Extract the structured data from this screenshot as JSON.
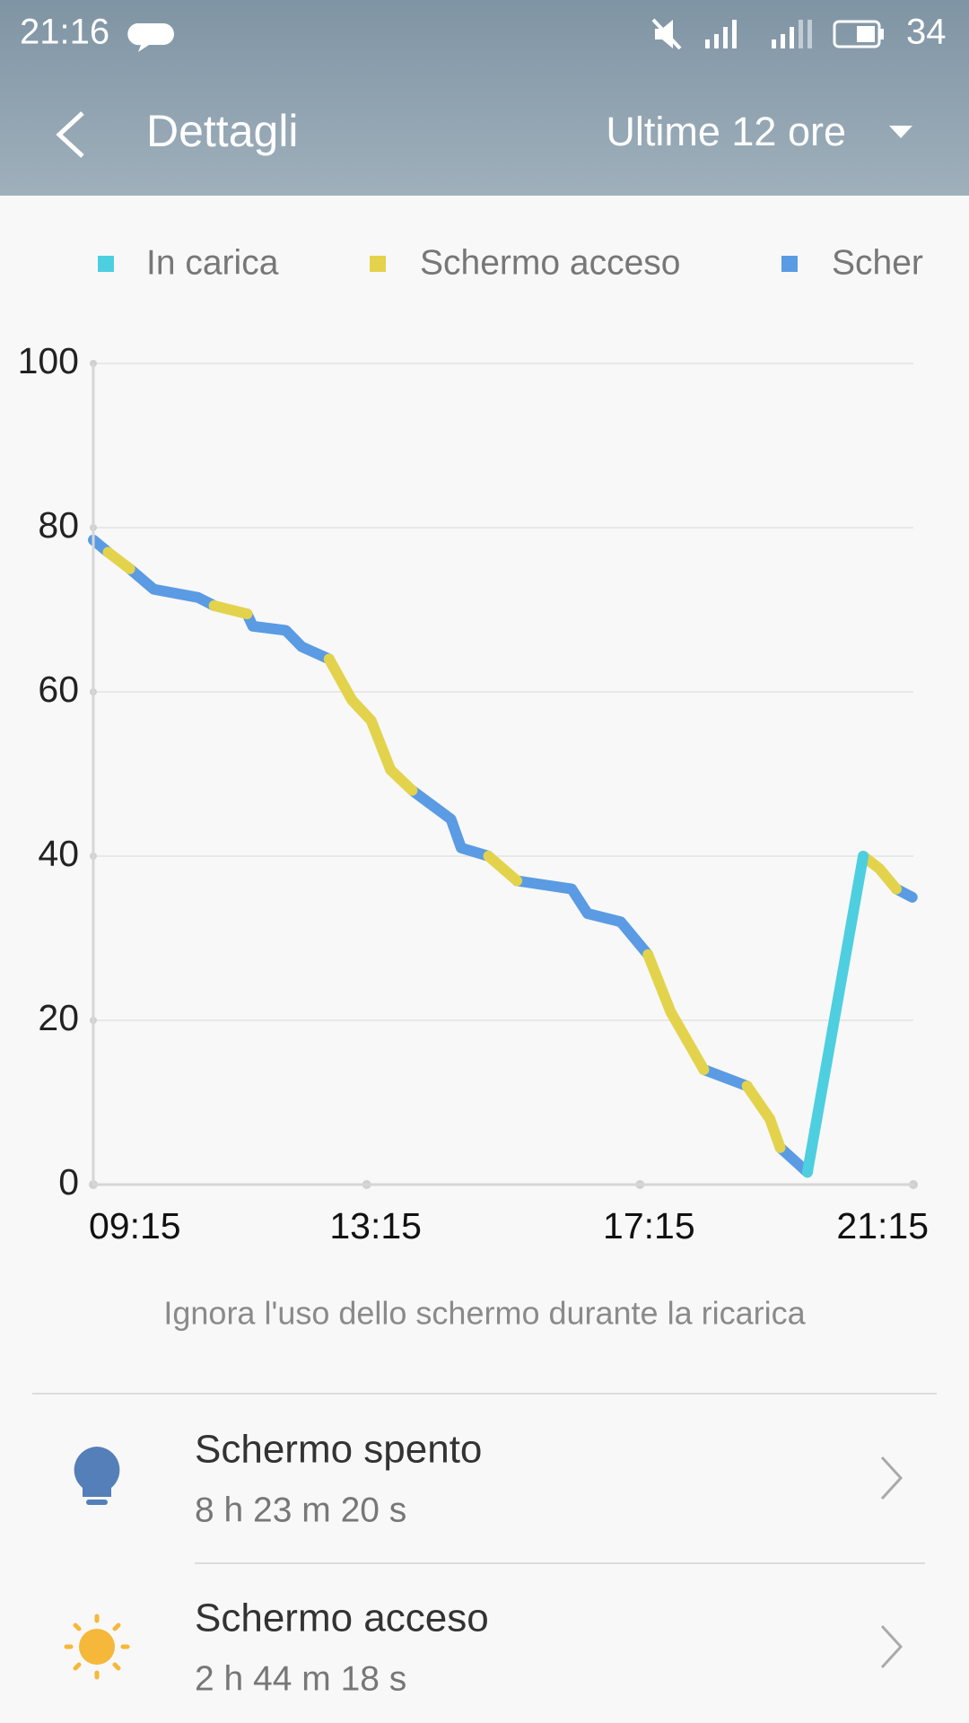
{
  "status_bar": {
    "time": "21:16",
    "battery": "34"
  },
  "header": {
    "title": "Dettagli",
    "range": "Ultime 12 ore"
  },
  "chart_data": {
    "type": "line",
    "series": [
      {
        "name": "In carica",
        "color": "#4dcfe0",
        "x": [
          "19:42",
          "20:31"
        ],
        "values": [
          1.5,
          40
        ]
      },
      {
        "name": "Schermo acceso",
        "color": "#e3d34c",
        "x": [
          "09:28",
          "09:47",
          null,
          "11:01",
          "11:30",
          null,
          "12:42",
          "13:02",
          "13:19",
          "13:36",
          "13:55",
          null,
          "15:02",
          "15:27",
          null,
          "17:22",
          "17:42",
          "18:11",
          null,
          "18:49",
          "19:09",
          "19:18",
          null,
          "20:31",
          "20:45",
          "21:00"
        ],
        "values": [
          77,
          75,
          null,
          70.5,
          69.5,
          null,
          64,
          59,
          56.5,
          50.5,
          48,
          null,
          40,
          37,
          null,
          28,
          21,
          14,
          null,
          12,
          8,
          4.5,
          null,
          40,
          38.5,
          36
        ]
      },
      {
        "name": "Scher",
        "color": "#5a9be3",
        "x": [
          "09:15",
          "09:28",
          null,
          "09:47",
          "10:08",
          "10:47",
          "11:01",
          null,
          "11:30",
          "11:35",
          "12:04",
          "12:18",
          "12:42",
          null,
          "13:55",
          "14:29",
          "14:38",
          "15:02",
          null,
          "15:27",
          "16:15",
          "16:29",
          "16:58",
          "17:13",
          "17:22",
          null,
          "18:11",
          "18:49",
          null,
          "19:18",
          "19:42",
          null,
          "21:00",
          "21:14"
        ],
        "values": [
          78.5,
          77,
          null,
          75,
          72.5,
          71.5,
          70.5,
          null,
          69.5,
          68,
          67.5,
          65.5,
          64,
          null,
          48,
          44.5,
          41,
          40,
          null,
          37,
          36,
          33,
          32,
          29.5,
          28,
          null,
          14,
          12,
          null,
          4.5,
          1.5,
          null,
          36,
          35
        ]
      }
    ],
    "xlim": [
      "09:15",
      "21:15"
    ],
    "xticks": [
      "09:15",
      "13:15",
      "17:15",
      "21:15"
    ],
    "ylim": [
      0,
      100
    ],
    "yticks": [
      0,
      20,
      40,
      60,
      80,
      100
    ],
    "grid": true
  },
  "note": "Ignora l'uso dello schermo durante la ricarica",
  "items": [
    {
      "title": "Schermo spento",
      "duration": "8 h 23 m 20 s"
    },
    {
      "title": "Schermo acceso",
      "duration": "2 h 44 m 18 s"
    }
  ]
}
